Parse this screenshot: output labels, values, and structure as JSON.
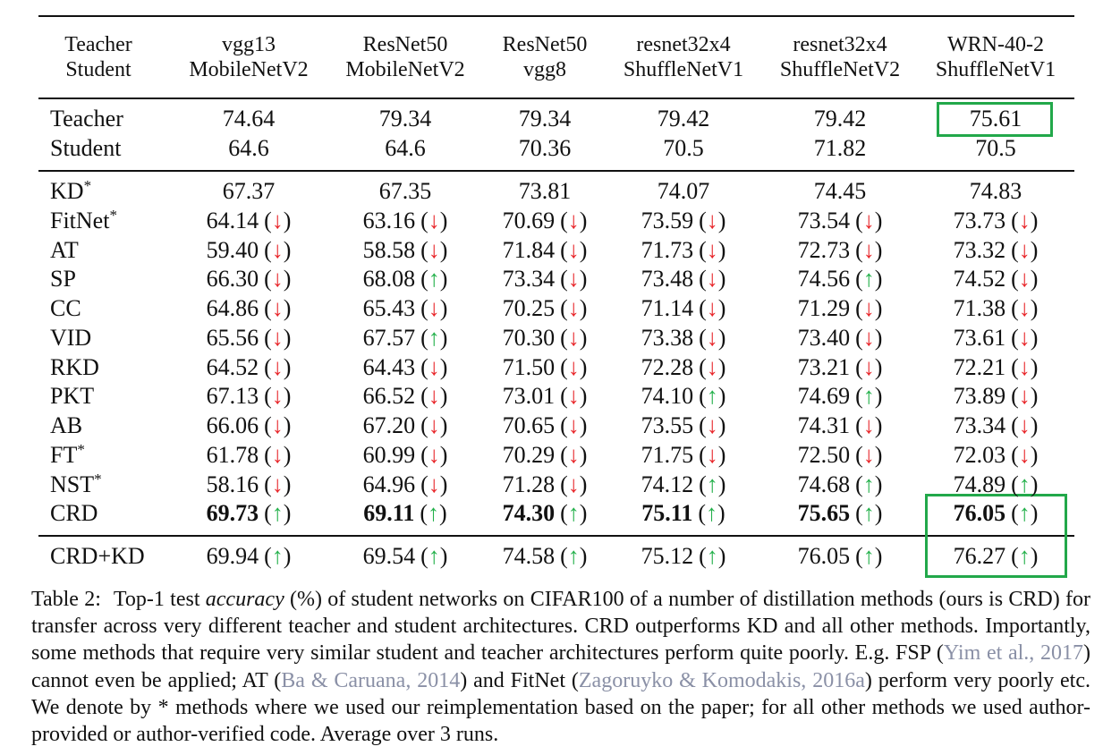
{
  "table": {
    "header": {
      "label": [
        "Teacher",
        "Student"
      ],
      "columns": [
        [
          "vgg13",
          "MobileNetV2"
        ],
        [
          "ResNet50",
          "MobileNetV2"
        ],
        [
          "ResNet50",
          "vgg8"
        ],
        [
          "resnet32x4",
          "ShuffleNetV1"
        ],
        [
          "resnet32x4",
          "ShuffleNetV2"
        ],
        [
          "WRN-40-2",
          "ShuffleNetV1"
        ]
      ]
    },
    "groups": [
      {
        "rows": [
          {
            "label": "Teacher",
            "cells": [
              [
                "74.64"
              ],
              [
                "79.34"
              ],
              [
                "79.34"
              ],
              [
                "79.42"
              ],
              [
                "79.42"
              ],
              [
                "75.61"
              ]
            ]
          },
          {
            "label": "Student",
            "cells": [
              [
                "64.6"
              ],
              [
                "64.6"
              ],
              [
                "70.36"
              ],
              [
                "70.5"
              ],
              [
                "71.82"
              ],
              [
                "70.5"
              ]
            ]
          }
        ]
      },
      {
        "rows": [
          {
            "label": "KD",
            "sup": "*",
            "cells": [
              [
                "67.37"
              ],
              [
                "67.35"
              ],
              [
                "73.81"
              ],
              [
                "74.07"
              ],
              [
                "74.45"
              ],
              [
                "74.83"
              ]
            ]
          },
          {
            "label": "FitNet",
            "sup": "*",
            "cells": [
              [
                "64.14",
                "(↓)",
                "#e8262a"
              ],
              [
                "63.16",
                "(↓)",
                "#e8262a"
              ],
              [
                "70.69",
                "(↓)",
                "#e8262a"
              ],
              [
                "73.59",
                "(↓)",
                "#e8262a"
              ],
              [
                "73.54",
                "(↓)",
                "#e8262a"
              ],
              [
                "73.73",
                "(↓)",
                "#e8262a"
              ]
            ]
          },
          {
            "label": "AT",
            "cells": [
              [
                "59.40",
                "(↓)",
                "#e8262a"
              ],
              [
                "58.58",
                "(↓)",
                "#e8262a"
              ],
              [
                "71.84",
                "(↓)",
                "#e8262a"
              ],
              [
                "71.73",
                "(↓)",
                "#e8262a"
              ],
              [
                "72.73",
                "(↓)",
                "#e8262a"
              ],
              [
                "73.32",
                "(↓)",
                "#e8262a"
              ]
            ]
          },
          {
            "label": "SP",
            "cells": [
              [
                "66.30",
                "(↓)",
                "#e8262a"
              ],
              [
                "68.08",
                "(↑)",
                "#22b04a"
              ],
              [
                "73.34",
                "(↓)",
                "#e8262a"
              ],
              [
                "73.48",
                "(↓)",
                "#e8262a"
              ],
              [
                "74.56",
                "(↑)",
                "#22b04a"
              ],
              [
                "74.52",
                "(↓)",
                "#e8262a"
              ]
            ]
          },
          {
            "label": "CC",
            "cells": [
              [
                "64.86",
                "(↓)",
                "#e8262a"
              ],
              [
                "65.43",
                "(↓)",
                "#e8262a"
              ],
              [
                "70.25",
                "(↓)",
                "#e8262a"
              ],
              [
                "71.14",
                "(↓)",
                "#e8262a"
              ],
              [
                "71.29",
                "(↓)",
                "#e8262a"
              ],
              [
                "71.38",
                "(↓)",
                "#e8262a"
              ]
            ]
          },
          {
            "label": "VID",
            "cells": [
              [
                "65.56",
                "(↓)",
                "#e8262a"
              ],
              [
                "67.57",
                "(↑)",
                "#22b04a"
              ],
              [
                "70.30",
                "(↓)",
                "#e8262a"
              ],
              [
                "73.38",
                "(↓)",
                "#e8262a"
              ],
              [
                "73.40",
                "(↓)",
                "#e8262a"
              ],
              [
                "73.61",
                "(↓)",
                "#e8262a"
              ]
            ]
          },
          {
            "label": "RKD",
            "cells": [
              [
                "64.52",
                "(↓)",
                "#e8262a"
              ],
              [
                "64.43",
                "(↓)",
                "#e8262a"
              ],
              [
                "71.50",
                "(↓)",
                "#e8262a"
              ],
              [
                "72.28",
                "(↓)",
                "#e8262a"
              ],
              [
                "73.21",
                "(↓)",
                "#e8262a"
              ],
              [
                "72.21",
                "(↓)",
                "#e8262a"
              ]
            ]
          },
          {
            "label": "PKT",
            "cells": [
              [
                "67.13",
                "(↓)",
                "#e8262a"
              ],
              [
                "66.52",
                "(↓)",
                "#e8262a"
              ],
              [
                "73.01",
                "(↓)",
                "#e8262a"
              ],
              [
                "74.10",
                "(↑)",
                "#22b04a"
              ],
              [
                "74.69",
                "(↑)",
                "#22b04a"
              ],
              [
                "73.89",
                "(↓)",
                "#e8262a"
              ]
            ]
          },
          {
            "label": "AB",
            "cells": [
              [
                "66.06",
                "(↓)",
                "#e8262a"
              ],
              [
                "67.20",
                "(↓)",
                "#e8262a"
              ],
              [
                "70.65",
                "(↓)",
                "#e8262a"
              ],
              [
                "73.55",
                "(↓)",
                "#e8262a"
              ],
              [
                "74.31",
                "(↓)",
                "#e8262a"
              ],
              [
                "73.34",
                "(↓)",
                "#e8262a"
              ]
            ]
          },
          {
            "label": "FT",
            "sup": "*",
            "cells": [
              [
                "61.78",
                "(↓)",
                "#e8262a"
              ],
              [
                "60.99",
                "(↓)",
                "#e8262a"
              ],
              [
                "70.29",
                "(↓)",
                "#e8262a"
              ],
              [
                "71.75",
                "(↓)",
                "#e8262a"
              ],
              [
                "72.50",
                "(↓)",
                "#e8262a"
              ],
              [
                "72.03",
                "(↓)",
                "#e8262a"
              ]
            ]
          },
          {
            "label": "NST",
            "sup": "*",
            "cells": [
              [
                "58.16",
                "(↓)",
                "#e8262a"
              ],
              [
                "64.96",
                "(↓)",
                "#e8262a"
              ],
              [
                "71.28",
                "(↓)",
                "#e8262a"
              ],
              [
                "74.12",
                "(↑)",
                "#22b04a"
              ],
              [
                "74.68",
                "(↑)",
                "#22b04a"
              ],
              [
                "74.89",
                "(↑)",
                "#22b04a"
              ]
            ]
          },
          {
            "label": "CRD",
            "bold": true,
            "cells": [
              [
                "69.73",
                "(↑)",
                "#22b04a"
              ],
              [
                "69.11",
                "(↑)",
                "#22b04a"
              ],
              [
                "74.30",
                "(↑)",
                "#22b04a"
              ],
              [
                "75.11",
                "(↑)",
                "#22b04a"
              ],
              [
                "75.65",
                "(↑)",
                "#22b04a"
              ],
              [
                "76.05",
                "(↑)",
                "#22b04a"
              ]
            ]
          }
        ]
      },
      {
        "rows": [
          {
            "label": "CRD+KD",
            "cells": [
              [
                "69.94",
                "(↑)",
                "#22b04a"
              ],
              [
                "69.54",
                "(↑)",
                "#22b04a"
              ],
              [
                "74.58",
                "(↑)",
                "#22b04a"
              ],
              [
                "75.12",
                "(↑)",
                "#22b04a"
              ],
              [
                "76.05",
                "(↑)",
                "#22b04a"
              ],
              [
                "76.27",
                "(↑)",
                "#22b04a"
              ]
            ]
          }
        ]
      }
    ]
  },
  "caption": {
    "label": "Table 2:",
    "segments": [
      {
        "text": "Top-1 test ",
        "style": "plain"
      },
      {
        "text": "accuracy",
        "style": "italic"
      },
      {
        "text": " (%) of student networks on CIFAR100 of a number of distillation methods (ours is CRD) for transfer across very different teacher and student architectures. CRD outperforms KD and all other methods. Importantly, some methods that require very similar student and teacher architectures perform quite poorly. E.g. FSP (",
        "style": "plain"
      },
      {
        "text": "Yim et al., 2017",
        "style": "cite"
      },
      {
        "text": ") cannot even be applied; AT (",
        "style": "plain"
      },
      {
        "text": "Ba & Caruana, 2014",
        "style": "cite"
      },
      {
        "text": ") and FitNet (",
        "style": "plain"
      },
      {
        "text": "Zagoruyko & Komodakis, 2016a",
        "style": "cite"
      },
      {
        "text": ") perform very poorly etc. We denote by * methods where we used our reimplementation based on the paper; for all other methods we used author-provided or author-verified code. Average over 3 runs.",
        "style": "plain"
      }
    ]
  }
}
